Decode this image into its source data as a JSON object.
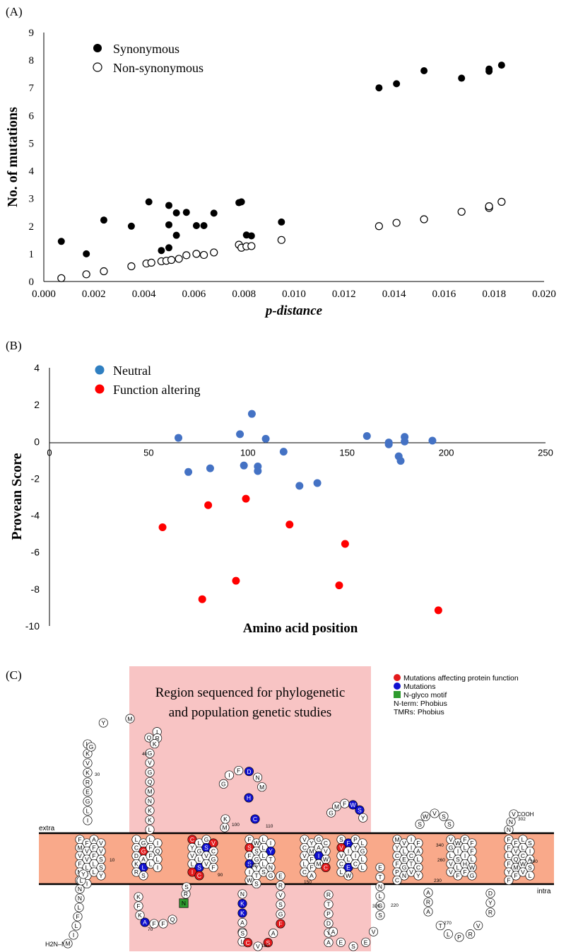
{
  "panels": {
    "a": "(A)",
    "b": "(B)",
    "c": "(C)"
  },
  "chart_data": [
    {
      "type": "scatter",
      "panel": "A",
      "xlabel": "p-distance",
      "ylabel": "No. of mutations",
      "xlim": [
        0.0,
        0.02
      ],
      "ylim": [
        0,
        9
      ],
      "x_ticks": [
        "0.000",
        "0.002",
        "0.004",
        "0.006",
        "0.008",
        "0.010",
        "0.012",
        "0.014",
        "0.016",
        "0.018",
        "0.020"
      ],
      "y_ticks": [
        "0",
        "1",
        "2",
        "3",
        "4",
        "5",
        "6",
        "7",
        "8",
        "9"
      ],
      "grid": false,
      "legend_position": "top-left",
      "series": [
        {
          "name": "Synonymous",
          "marker": "filled-circle",
          "color": "#000000",
          "points": [
            [
              0.0007,
              1.45
            ],
            [
              0.0017,
              1.0
            ],
            [
              0.0024,
              2.22
            ],
            [
              0.0035,
              2.0
            ],
            [
              0.0042,
              2.88
            ],
            [
              0.0047,
              1.12
            ],
            [
              0.005,
              2.75
            ],
            [
              0.005,
              2.05
            ],
            [
              0.005,
              1.22
            ],
            [
              0.0053,
              2.48
            ],
            [
              0.0053,
              1.67
            ],
            [
              0.0057,
              2.5
            ],
            [
              0.0061,
              2.02
            ],
            [
              0.0064,
              2.02
            ],
            [
              0.0068,
              2.47
            ],
            [
              0.0078,
              2.85
            ],
            [
              0.0079,
              2.88
            ],
            [
              0.0081,
              1.68
            ],
            [
              0.0083,
              1.65
            ],
            [
              0.0095,
              2.15
            ],
            [
              0.0134,
              7.0
            ],
            [
              0.0141,
              7.15
            ],
            [
              0.0152,
              7.62
            ],
            [
              0.0167,
              7.35
            ],
            [
              0.0178,
              7.6
            ],
            [
              0.0178,
              7.68
            ],
            [
              0.0183,
              7.82
            ]
          ]
        },
        {
          "name": "Non-synonymous",
          "marker": "open-circle",
          "color": "#000000",
          "points": [
            [
              0.0007,
              0.12
            ],
            [
              0.0017,
              0.26
            ],
            [
              0.0024,
              0.37
            ],
            [
              0.0035,
              0.55
            ],
            [
              0.0041,
              0.65
            ],
            [
              0.0043,
              0.68
            ],
            [
              0.0047,
              0.73
            ],
            [
              0.0049,
              0.75
            ],
            [
              0.0051,
              0.78
            ],
            [
              0.0054,
              0.82
            ],
            [
              0.0057,
              0.95
            ],
            [
              0.0061,
              1.0
            ],
            [
              0.0064,
              0.96
            ],
            [
              0.0068,
              1.05
            ],
            [
              0.0078,
              1.33
            ],
            [
              0.0079,
              1.22
            ],
            [
              0.0081,
              1.27
            ],
            [
              0.0083,
              1.28
            ],
            [
              0.0095,
              1.5
            ],
            [
              0.0134,
              2.0
            ],
            [
              0.0141,
              2.12
            ],
            [
              0.0152,
              2.25
            ],
            [
              0.0167,
              2.52
            ],
            [
              0.0178,
              2.66
            ],
            [
              0.0178,
              2.72
            ],
            [
              0.0183,
              2.88
            ]
          ]
        }
      ]
    },
    {
      "type": "scatter",
      "panel": "B",
      "xlabel": "Amino acid position",
      "ylabel": "Provean Score",
      "xlim": [
        0,
        250
      ],
      "ylim": [
        -10,
        4
      ],
      "x_ticks": [
        "0",
        "50",
        "100",
        "150",
        "200",
        "250"
      ],
      "y_ticks": [
        "4",
        "2",
        "0",
        "-2",
        "-4",
        "-6",
        "-8",
        "-10"
      ],
      "grid": false,
      "legend_position": "top-left",
      "series": [
        {
          "name": "Neutral",
          "color": "#4472c4",
          "points": [
            [
              65,
              0.2
            ],
            [
              70,
              -1.65
            ],
            [
              81,
              -1.45
            ],
            [
              96,
              0.4
            ],
            [
              98,
              -1.3
            ],
            [
              102,
              1.5
            ],
            [
              105,
              -1.35
            ],
            [
              105,
              -1.6
            ],
            [
              109,
              0.15
            ],
            [
              118,
              -0.55
            ],
            [
              126,
              -2.4
            ],
            [
              135,
              -2.25
            ],
            [
              160,
              0.3
            ],
            [
              171,
              -0.05
            ],
            [
              171,
              -0.15
            ],
            [
              176,
              -0.8
            ],
            [
              177,
              -1.05
            ],
            [
              179,
              0.25
            ],
            [
              179,
              0.0
            ],
            [
              193,
              0.05
            ]
          ]
        },
        {
          "name": "Function altering",
          "color": "#ff0000",
          "points": [
            [
              57,
              -4.65
            ],
            [
              77,
              -8.55
            ],
            [
              80,
              -3.45
            ],
            [
              94,
              -7.55
            ],
            [
              99,
              -3.1
            ],
            [
              121,
              -4.5
            ],
            [
              146,
              -7.8
            ],
            [
              149,
              -5.55
            ],
            [
              196,
              -9.15
            ]
          ]
        }
      ]
    }
  ],
  "topology": {
    "region_label_line1": "Region sequenced for phylogenetic",
    "region_label_line2": "and population genetic studies",
    "extra_label": "extra",
    "intra_label": "intra",
    "n_terminus": "H2N–M",
    "c_terminus": "–COOH",
    "legend": [
      {
        "label": "Mutations affecting protein function",
        "color": "#e31a1c",
        "shape": "circle"
      },
      {
        "label": "Mutations",
        "color": "#1010d0",
        "shape": "circle"
      },
      {
        "label": "N-glyco motif",
        "color": "#2e9b2e",
        "shape": "square"
      },
      {
        "label": "N-term: Phobius",
        "color": "",
        "shape": "none"
      },
      {
        "label": "TMRs: Phobius",
        "color": "",
        "shape": "none"
      }
    ],
    "colors": {
      "highlight": "#f8c4c4",
      "membrane": "#f9a98a",
      "wildtype": "#ffffff",
      "affecting": "#e31a1c",
      "mutation": "#1010d0",
      "glyco": "#2e9b2e"
    },
    "position_labels": [
      "10",
      "30",
      "40",
      "70",
      "90",
      "100",
      "110",
      "130",
      "150",
      "180",
      "220",
      "230",
      "260",
      "270",
      "300",
      "302",
      "320",
      "340"
    ],
    "loop_residues": {
      "n_tail": [
        "M",
        "I",
        "L",
        "F",
        "L",
        "N",
        "N",
        "L",
        "Y"
      ],
      "loop1_left": [
        "I",
        "L",
        "G",
        "E",
        "R",
        "K",
        "V",
        "K",
        "L",
        "G",
        "Y",
        "M",
        "Q"
      ],
      "loop1_right": [
        "I",
        "R",
        "K",
        "G",
        "V",
        "G",
        "Q",
        "M",
        "N",
        "K",
        "K",
        "L"
      ],
      "loop2_bottom": [
        "K",
        "F",
        "K",
        "A",
        "F",
        "F",
        "Q",
        "N",
        "R",
        "S"
      ],
      "loop3_top": [
        "G",
        "I",
        "F",
        "D",
        "N",
        "M",
        "H",
        "C",
        "M",
        "K"
      ],
      "loop4_bottom": [
        "N",
        "K",
        "K",
        "A",
        "L",
        "L",
        "S",
        "C",
        "V",
        "S",
        "A",
        "F",
        "G",
        "S",
        "V",
        "R",
        "E"
      ],
      "loop5_top": [
        "G",
        "M",
        "F",
        "W",
        "S",
        "Y"
      ],
      "loop6_bottom": [
        "R",
        "T",
        "P",
        "D",
        "Y",
        "A",
        "A",
        "E",
        "S",
        "E",
        "V",
        "S",
        "G",
        "L",
        "N",
        "T",
        "E"
      ],
      "loop7_top": [
        "S",
        "W",
        "V",
        "S",
        "S"
      ],
      "loop8_bottom": [
        "A",
        "R",
        "A",
        "T",
        "L",
        "P",
        "R",
        "V",
        "R",
        "Y",
        "D"
      ],
      "c_tail": [
        "N",
        "N",
        "V"
      ]
    },
    "helix_residues": {
      "tm1": [
        "F",
        "F",
        "A",
        "V",
        "M",
        "V",
        "F",
        "V",
        "V",
        "V",
        "F",
        "S",
        "F",
        "L",
        "L",
        "S",
        "M",
        "F",
        "L",
        "Y",
        "L",
        "I"
      ],
      "tm2": [
        "L",
        "G",
        "L",
        "I",
        "C",
        "G",
        "F",
        "Q",
        "D",
        "A",
        "F",
        "L",
        "K",
        "L",
        "L",
        "I",
        "R",
        "S"
      ],
      "tm3": [
        "C",
        "L",
        "G",
        "V",
        "Y",
        "G",
        "S",
        "C",
        "V",
        "L",
        "V",
        "G",
        "L",
        "S",
        "V",
        "F",
        "I",
        "C"
      ],
      "tm4": [
        "F",
        "W",
        "L",
        "I",
        "S",
        "S",
        "L",
        "Y",
        "F",
        "G",
        "L",
        "T",
        "S",
        "Y",
        "L",
        "N",
        "I",
        "T",
        "S",
        "G",
        "W",
        "S"
      ],
      "tm5": [
        "V",
        "Y",
        "G",
        "C",
        "C",
        "M",
        "A",
        "V",
        "V",
        "F",
        "I",
        "W",
        "L",
        "F",
        "M",
        "C",
        "C",
        "A"
      ],
      "tm6": [
        "S",
        "F",
        "P",
        "L",
        "V",
        "I",
        "Y",
        "G",
        "V",
        "L",
        "I",
        "L",
        "C",
        "E",
        "C",
        "L",
        "L",
        "W"
      ],
      "tm7": [
        "M",
        "V",
        "I",
        "F",
        "Y",
        "L",
        "I",
        "A",
        "C",
        "E",
        "C",
        "L",
        "F",
        "G",
        "T",
        "C",
        "P",
        "N",
        "V",
        "Y",
        "C"
      ],
      "tm8": [
        "V",
        "W",
        "F",
        "F",
        "G",
        "I",
        "L",
        "F",
        "L",
        "S",
        "I",
        "L",
        "V",
        "L",
        "H",
        "W",
        "V",
        "F",
        "F",
        "G"
      ],
      "tm9": [
        "F",
        "F",
        "L",
        "S",
        "F",
        "V",
        "L",
        "I",
        "L",
        "Q",
        "C",
        "A",
        "F",
        "M",
        "W",
        "S",
        "Y",
        "F",
        "V",
        "L",
        "F"
      ]
    }
  }
}
